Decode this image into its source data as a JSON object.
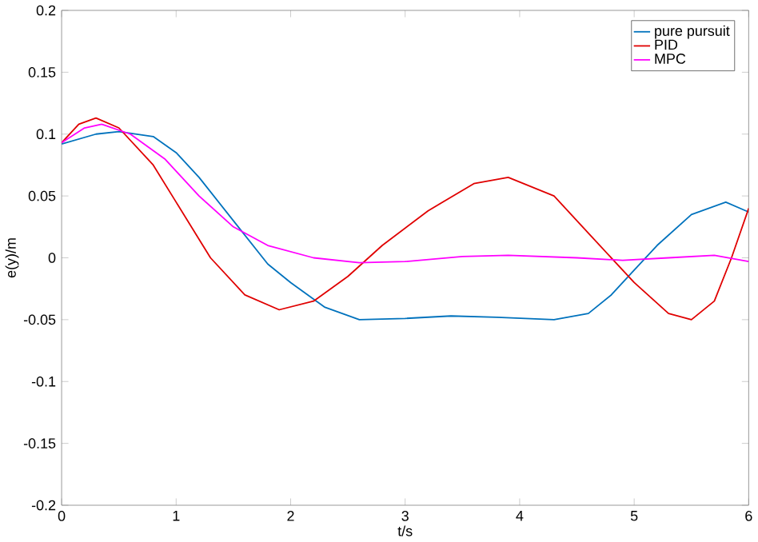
{
  "chart_data": {
    "type": "line",
    "xlabel": "t/s",
    "ylabel": "e(y)/m",
    "xlim": [
      0,
      6
    ],
    "ylim": [
      -0.2,
      0.2
    ],
    "xticks": [
      0,
      1,
      2,
      3,
      4,
      5,
      6
    ],
    "yticks": [
      -0.2,
      -0.15,
      -0.1,
      -0.05,
      0,
      0.05,
      0.1,
      0.15,
      0.2
    ],
    "grid": false,
    "legend": "top right",
    "marker": "none",
    "line_style": "solid",
    "series": [
      {
        "name": "pure pursuit",
        "color": "#0072bd",
        "x": [
          0,
          0.3,
          0.5,
          0.8,
          1.0,
          1.2,
          1.5,
          1.8,
          2.0,
          2.3,
          2.6,
          3.0,
          3.4,
          3.8,
          4.3,
          4.6,
          4.8,
          5.0,
          5.2,
          5.5,
          5.8,
          6.0
        ],
        "values": [
          0.092,
          0.1,
          0.102,
          0.098,
          0.085,
          0.065,
          0.03,
          -0.005,
          -0.02,
          -0.04,
          -0.05,
          -0.049,
          -0.047,
          -0.048,
          -0.05,
          -0.045,
          -0.03,
          -0.01,
          0.01,
          0.035,
          0.045,
          0.037
        ]
      },
      {
        "name": "PID",
        "color": "#e00000",
        "x": [
          0,
          0.15,
          0.3,
          0.5,
          0.8,
          1.0,
          1.3,
          1.6,
          1.9,
          2.2,
          2.5,
          2.8,
          3.2,
          3.6,
          3.9,
          4.3,
          4.6,
          5.0,
          5.3,
          5.5,
          5.7,
          5.85,
          6.0
        ],
        "values": [
          0.093,
          0.108,
          0.113,
          0.105,
          0.075,
          0.045,
          0.0,
          -0.03,
          -0.042,
          -0.035,
          -0.015,
          0.01,
          0.038,
          0.06,
          0.065,
          0.05,
          0.02,
          -0.02,
          -0.045,
          -0.05,
          -0.035,
          0.0,
          0.04
        ]
      },
      {
        "name": "MPC",
        "color": "#ff00ff",
        "x": [
          0,
          0.2,
          0.35,
          0.6,
          0.9,
          1.2,
          1.5,
          1.8,
          2.2,
          2.6,
          3.0,
          3.5,
          3.9,
          4.5,
          4.9,
          5.3,
          5.7,
          6.0
        ],
        "values": [
          0.093,
          0.105,
          0.108,
          0.1,
          0.08,
          0.05,
          0.025,
          0.01,
          0.0,
          -0.004,
          -0.003,
          0.001,
          0.002,
          0.0,
          -0.002,
          0.0,
          0.002,
          -0.003
        ]
      }
    ]
  }
}
